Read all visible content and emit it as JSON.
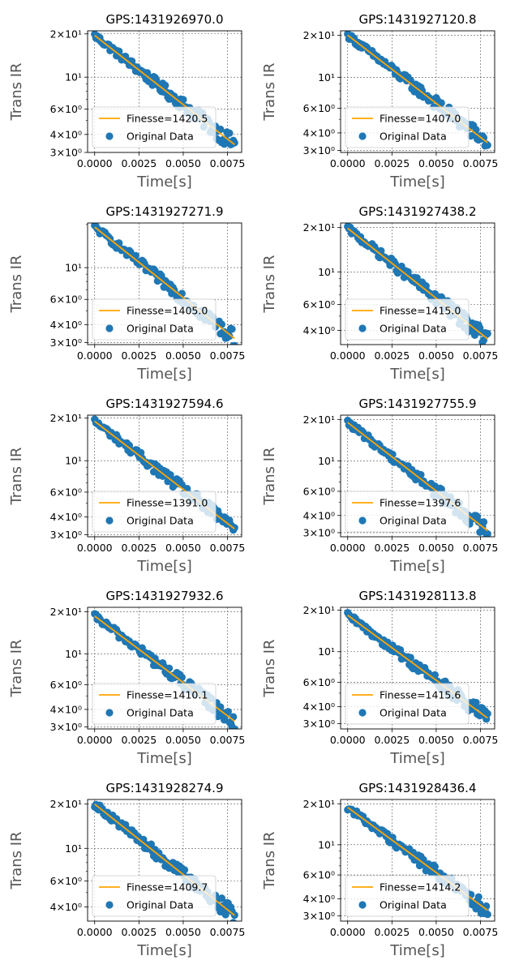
{
  "figure": {
    "layout": "5 rows x 2 columns of log-scale scatter plots with fitted lines",
    "colors": {
      "scatter": "#1f77b4",
      "fit": "#ffa500",
      "grid": "#555555",
      "axis": "#000000",
      "label": "#555555"
    }
  },
  "chart_data": [
    {
      "type": "scatter",
      "title": "GPS:1431926970.0",
      "xlabel": "Time[s]",
      "ylabel": "Trans IR",
      "y_scale": "log",
      "xlim": [
        -0.0004,
        0.0083
      ],
      "ylim": [
        3.0,
        21.0
      ],
      "xticks": [
        0,
        0.0025,
        0.005,
        0.0075
      ],
      "xtick_labels": [
        "0.0000",
        "0.0025",
        "0.0050",
        "0.0075"
      ],
      "yticks": [
        3,
        4,
        6,
        10,
        20
      ],
      "ytick_labels": [
        "3×10⁰",
        "4×10⁰",
        "6×10⁰",
        "10¹",
        "2×10¹"
      ],
      "grid": true,
      "legend": {
        "position": "lower-left",
        "entries": [
          "Finesse=1420.5",
          "Original Data"
        ]
      },
      "fit": {
        "label": "Finesse=1420.5",
        "x": [
          0,
          0.0079
        ],
        "y": [
          19.5,
          3.4
        ]
      },
      "series": [
        {
          "name": "Original Data",
          "x_start": 0,
          "x_end": 0.0079,
          "y_start": 19.5,
          "y_end": 3.4,
          "n": 110
        }
      ]
    },
    {
      "type": "scatter",
      "title": "GPS:1431927120.8",
      "xlabel": "Time[s]",
      "ylabel": "Trans IR",
      "y_scale": "log",
      "xlim": [
        -0.0004,
        0.0083
      ],
      "ylim": [
        2.9,
        21.5
      ],
      "xticks": [
        0,
        0.0025,
        0.005,
        0.0075
      ],
      "xtick_labels": [
        "0.0000",
        "0.0025",
        "0.0050",
        "0.0075"
      ],
      "yticks": [
        3,
        4,
        6,
        10,
        20
      ],
      "ytick_labels": [
        "3×10⁰",
        "4×10⁰",
        "6×10⁰",
        "10¹",
        "2×10¹"
      ],
      "grid": true,
      "legend": {
        "position": "lower-left",
        "entries": [
          "Finesse=1407.0",
          "Original Data"
        ]
      },
      "fit": {
        "label": "Finesse=1407.0",
        "x": [
          0,
          0.0079
        ],
        "y": [
          20.0,
          3.4
        ]
      },
      "series": [
        {
          "name": "Original Data",
          "x_start": 0,
          "x_end": 0.0079,
          "y_start": 20.0,
          "y_end": 3.4,
          "n": 110
        }
      ]
    },
    {
      "type": "scatter",
      "title": "GPS:1431927271.9",
      "xlabel": "Time[s]",
      "ylabel": "Trans IR",
      "y_scale": "log",
      "xlim": [
        -0.0004,
        0.0083
      ],
      "ylim": [
        2.9,
        20.5
      ],
      "xticks": [
        0,
        0.0025,
        0.005,
        0.0075
      ],
      "xtick_labels": [
        "0.0000",
        "0.0025",
        "0.0050",
        "0.0075"
      ],
      "yticks": [
        3,
        4,
        6,
        10
      ],
      "ytick_labels": [
        "3×10⁰",
        "4×10⁰",
        "6×10⁰",
        "10¹"
      ],
      "grid": true,
      "legend": {
        "position": "lower-left",
        "entries": [
          "Finesse=1405.0",
          "Original Data"
        ]
      },
      "fit": {
        "label": "Finesse=1405.0",
        "x": [
          0,
          0.0079
        ],
        "y": [
          19.2,
          3.2
        ]
      },
      "series": [
        {
          "name": "Original Data",
          "x_start": 0,
          "x_end": 0.0079,
          "y_start": 19.2,
          "y_end": 3.2,
          "n": 110
        }
      ]
    },
    {
      "type": "scatter",
      "title": "GPS:1431927438.2",
      "xlabel": "Time[s]",
      "ylabel": "Trans IR",
      "y_scale": "log",
      "xlim": [
        -0.0004,
        0.0083
      ],
      "ylim": [
        3.2,
        21.5
      ],
      "xticks": [
        0,
        0.0025,
        0.005,
        0.0075
      ],
      "xtick_labels": [
        "0.0000",
        "0.0025",
        "0.0050",
        "0.0075"
      ],
      "yticks": [
        4,
        6,
        10,
        20
      ],
      "ytick_labels": [
        "4×10⁰",
        "6×10⁰",
        "10¹",
        "2×10¹"
      ],
      "grid": true,
      "legend": {
        "position": "lower-left",
        "entries": [
          "Finesse=1415.0",
          "Original Data"
        ]
      },
      "fit": {
        "label": "Finesse=1415.0",
        "x": [
          0,
          0.0079
        ],
        "y": [
          19.8,
          3.5
        ]
      },
      "series": [
        {
          "name": "Original Data",
          "x_start": 0,
          "x_end": 0.0079,
          "y_start": 19.8,
          "y_end": 3.5,
          "n": 110
        }
      ]
    },
    {
      "type": "scatter",
      "title": "GPS:1431927594.6",
      "xlabel": "Time[s]",
      "ylabel": "Trans IR",
      "y_scale": "log",
      "xlim": [
        -0.0004,
        0.0083
      ],
      "ylim": [
        2.9,
        21.0
      ],
      "xticks": [
        0,
        0.0025,
        0.005,
        0.0075
      ],
      "xtick_labels": [
        "0.0000",
        "0.0025",
        "0.0050",
        "0.0075"
      ],
      "yticks": [
        3,
        4,
        6,
        10,
        20
      ],
      "ytick_labels": [
        "3×10⁰",
        "4×10⁰",
        "6×10⁰",
        "10¹",
        "2×10¹"
      ],
      "grid": true,
      "legend": {
        "position": "lower-left",
        "entries": [
          "Finesse=1391.0",
          "Original Data"
        ]
      },
      "fit": {
        "label": "Finesse=1391.0",
        "x": [
          0,
          0.0079
        ],
        "y": [
          19.0,
          3.3
        ]
      },
      "series": [
        {
          "name": "Original Data",
          "x_start": 0,
          "x_end": 0.0079,
          "y_start": 19.0,
          "y_end": 3.3,
          "n": 110
        }
      ]
    },
    {
      "type": "scatter",
      "title": "GPS:1431927755.9",
      "xlabel": "Time[s]",
      "ylabel": "Trans IR",
      "y_scale": "log",
      "xlim": [
        -0.0004,
        0.0083
      ],
      "ylim": [
        2.8,
        21.5
      ],
      "xticks": [
        0,
        0.0025,
        0.005,
        0.0075
      ],
      "xtick_labels": [
        "0.0000",
        "0.0025",
        "0.0050",
        "0.0075"
      ],
      "yticks": [
        3,
        4,
        6,
        10,
        20
      ],
      "ytick_labels": [
        "3×10⁰",
        "4×10⁰",
        "6×10⁰",
        "10¹",
        "2×10¹"
      ],
      "grid": true,
      "legend": {
        "position": "lower-left",
        "entries": [
          "Finesse=1397.6",
          "Original Data"
        ]
      },
      "fit": {
        "label": "Finesse=1397.6",
        "x": [
          0,
          0.0079
        ],
        "y": [
          19.0,
          3.1
        ]
      },
      "series": [
        {
          "name": "Original Data",
          "x_start": 0,
          "x_end": 0.0079,
          "y_start": 19.0,
          "y_end": 3.1,
          "n": 110
        }
      ]
    },
    {
      "type": "scatter",
      "title": "GPS:1431927932.6",
      "xlabel": "Time[s]",
      "ylabel": "Trans IR",
      "y_scale": "log",
      "xlim": [
        -0.0004,
        0.0083
      ],
      "ylim": [
        2.9,
        21.5
      ],
      "xticks": [
        0,
        0.0025,
        0.005,
        0.0075
      ],
      "xtick_labels": [
        "0.0000",
        "0.0025",
        "0.0050",
        "0.0075"
      ],
      "yticks": [
        3,
        4,
        6,
        10,
        20
      ],
      "ytick_labels": [
        "3×10⁰",
        "4×10⁰",
        "6×10⁰",
        "10¹",
        "2×10¹"
      ],
      "grid": true,
      "legend": {
        "position": "lower-left",
        "entries": [
          "Finesse=1410.1",
          "Original Data"
        ]
      },
      "fit": {
        "label": "Finesse=1410.1",
        "x": [
          0,
          0.0079
        ],
        "y": [
          18.6,
          3.3
        ]
      },
      "series": [
        {
          "name": "Original Data",
          "x_start": 0,
          "x_end": 0.0079,
          "y_start": 18.6,
          "y_end": 3.3,
          "n": 110
        }
      ]
    },
    {
      "type": "scatter",
      "title": "GPS:1431928113.8",
      "xlabel": "Time[s]",
      "ylabel": "Trans IR",
      "y_scale": "log",
      "xlim": [
        -0.0004,
        0.0083
      ],
      "ylim": [
        2.75,
        21.0
      ],
      "xticks": [
        0,
        0.0025,
        0.005,
        0.0075
      ],
      "xtick_labels": [
        "0.0000",
        "0.0025",
        "0.0050",
        "0.0075"
      ],
      "yticks": [
        3,
        4,
        6,
        10,
        20
      ],
      "ytick_labels": [
        "3×10⁰",
        "4×10⁰",
        "6×10⁰",
        "10¹",
        "2×10¹"
      ],
      "grid": true,
      "legend": {
        "position": "lower-left",
        "entries": [
          "Finesse=1415.6",
          "Original Data"
        ]
      },
      "fit": {
        "label": "Finesse=1415.6",
        "x": [
          0,
          0.0079
        ],
        "y": [
          18.4,
          3.3
        ]
      },
      "series": [
        {
          "name": "Original Data",
          "x_start": 0,
          "x_end": 0.0079,
          "y_start": 18.4,
          "y_end": 3.3,
          "n": 110
        }
      ]
    },
    {
      "type": "scatter",
      "title": "GPS:1431928274.9",
      "xlabel": "Time[s]",
      "ylabel": "Trans IR",
      "y_scale": "log",
      "xlim": [
        -0.0004,
        0.0083
      ],
      "ylim": [
        3.2,
        21.5
      ],
      "xticks": [
        0,
        0.0025,
        0.005,
        0.0075
      ],
      "xtick_labels": [
        "0.0000",
        "0.0025",
        "0.0050",
        "0.0075"
      ],
      "yticks": [
        4,
        6,
        10,
        20
      ],
      "ytick_labels": [
        "4×10⁰",
        "6×10⁰",
        "10¹",
        "2×10¹"
      ],
      "grid": true,
      "legend": {
        "position": "lower-left",
        "entries": [
          "Finesse=1409.7",
          "Original Data"
        ]
      },
      "fit": {
        "label": "Finesse=1409.7",
        "x": [
          0,
          0.0079
        ],
        "y": [
          20.0,
          3.5
        ]
      },
      "series": [
        {
          "name": "Original Data",
          "x_start": 0,
          "x_end": 0.0079,
          "y_start": 20.0,
          "y_end": 3.5,
          "n": 110
        }
      ]
    },
    {
      "type": "scatter",
      "title": "GPS:1431928436.4",
      "xlabel": "Time[s]",
      "ylabel": "Trans IR",
      "y_scale": "log",
      "xlim": [
        -0.0004,
        0.0083
      ],
      "ylim": [
        2.75,
        21.5
      ],
      "xticks": [
        0,
        0.0025,
        0.005,
        0.0075
      ],
      "xtick_labels": [
        "0.0000",
        "0.0025",
        "0.0050",
        "0.0075"
      ],
      "yticks": [
        3,
        4,
        6,
        10,
        20
      ],
      "ytick_labels": [
        "3×10⁰",
        "4×10⁰",
        "6×10⁰",
        "10¹",
        "2×10¹"
      ],
      "grid": true,
      "legend": {
        "position": "lower-left",
        "entries": [
          "Finesse=1414.2",
          "Original Data"
        ]
      },
      "fit": {
        "label": "Finesse=1414.2",
        "x": [
          0,
          0.0079
        ],
        "y": [
          18.8,
          3.3
        ]
      },
      "series": [
        {
          "name": "Original Data",
          "x_start": 0,
          "x_end": 0.0079,
          "y_start": 18.8,
          "y_end": 3.3,
          "n": 110
        }
      ]
    }
  ]
}
